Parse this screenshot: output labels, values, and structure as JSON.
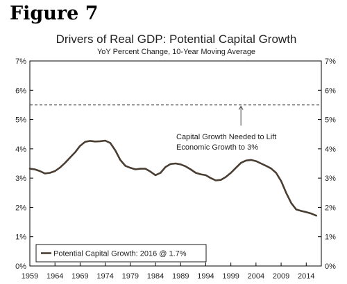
{
  "figure_label": "Figure 7",
  "chart_data": {
    "type": "line",
    "title": "Drivers of Real GDP: Potential Capital Growth",
    "subtitle": "YoY Percent Change, 10-Year Moving Average",
    "xlabel": "",
    "ylabel": "",
    "xlim": [
      1959,
      2017
    ],
    "ylim": [
      0,
      7
    ],
    "x_ticks": [
      "1959",
      "1964",
      "1969",
      "1974",
      "1979",
      "1984",
      "1989",
      "1994",
      "1999",
      "2004",
      "2009",
      "2014"
    ],
    "y_ticks": [
      "0%",
      "1%",
      "2%",
      "3%",
      "4%",
      "5%",
      "6%",
      "7%"
    ],
    "grid": false,
    "legend": "bottom-left",
    "reference_line": {
      "y": 5.5,
      "style": "dashed"
    },
    "annotation": {
      "lines": [
        "Capital Growth Needed to Lift",
        "Economic Growth to 3%"
      ],
      "points_to": [
        2001,
        5.5
      ]
    },
    "series": [
      {
        "name": "Potential Capital Growth: 2016 @ 1.7%",
        "color": "#4a3e33",
        "x": [
          1959,
          1960,
          1961,
          1962,
          1963,
          1964,
          1965,
          1966,
          1967,
          1968,
          1969,
          1970,
          1971,
          1972,
          1973,
          1974,
          1975,
          1976,
          1977,
          1978,
          1979,
          1980,
          1981,
          1982,
          1983,
          1984,
          1985,
          1986,
          1987,
          1988,
          1989,
          1990,
          1991,
          1992,
          1993,
          1994,
          1995,
          1996,
          1997,
          1998,
          1999,
          2000,
          2001,
          2002,
          2003,
          2004,
          2005,
          2006,
          2007,
          2008,
          2009,
          2010,
          2011,
          2012,
          2013,
          2014,
          2015,
          2016
        ],
        "values": [
          3.32,
          3.3,
          3.24,
          3.16,
          3.18,
          3.24,
          3.36,
          3.52,
          3.7,
          3.88,
          4.1,
          4.24,
          4.27,
          4.25,
          4.26,
          4.28,
          4.2,
          3.95,
          3.62,
          3.42,
          3.35,
          3.3,
          3.32,
          3.32,
          3.22,
          3.1,
          3.18,
          3.38,
          3.48,
          3.5,
          3.47,
          3.4,
          3.3,
          3.18,
          3.13,
          3.1,
          3.0,
          2.92,
          2.94,
          3.04,
          3.18,
          3.35,
          3.52,
          3.6,
          3.62,
          3.58,
          3.5,
          3.42,
          3.33,
          3.18,
          2.9,
          2.5,
          2.15,
          1.93,
          1.88,
          1.84,
          1.79,
          1.72
        ]
      }
    ]
  }
}
